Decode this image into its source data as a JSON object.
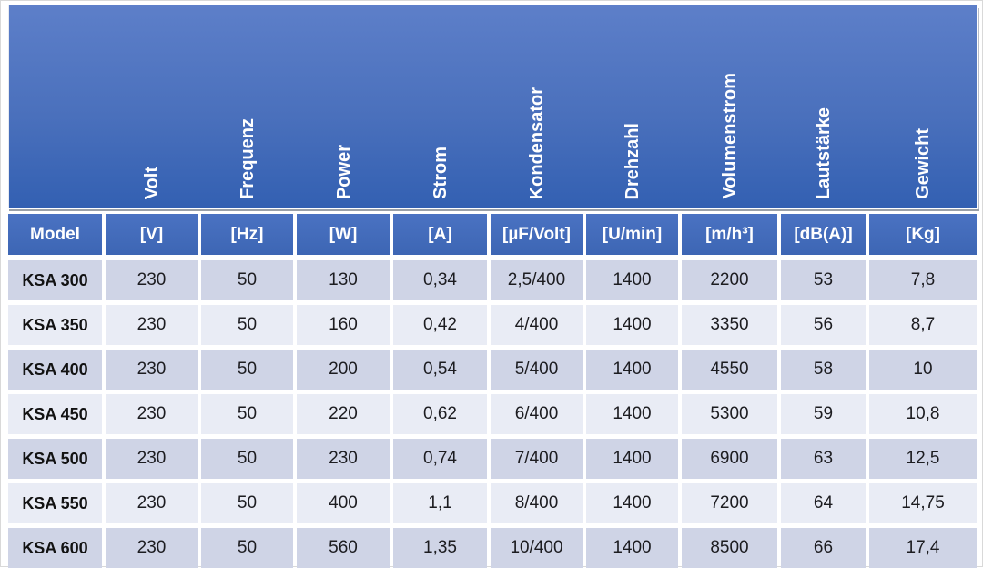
{
  "colors": {
    "banner_blue_top": "#5d7fc9",
    "banner_blue_bottom": "#3360b2",
    "unit_row_blue": "#3d66b4",
    "band_dark": "#cfd4e6",
    "band_light": "#e9ecf5",
    "header_text": "#ffffff",
    "data_text": "#1c1c20"
  },
  "chart_data": {
    "type": "table",
    "rotated_column_headers": [
      "Volt",
      "Frequenz",
      "Power",
      "Strom",
      "Kondensator",
      "Drehzahl",
      "Volumenstrom",
      "Lautstärke",
      "Gewicht"
    ],
    "unit_row": [
      "Model",
      "[V]",
      "[Hz]",
      "[W]",
      "[A]",
      "[µF/Volt]",
      "[U/min]",
      "[m/h³]",
      "[dB(A)]",
      "[Kg]"
    ],
    "rows": [
      {
        "model": "KSA 300",
        "values": [
          "230",
          "50",
          "130",
          "0,34",
          "2,5/400",
          "1400",
          "2200",
          "53",
          "7,8"
        ]
      },
      {
        "model": "KSA 350",
        "values": [
          "230",
          "50",
          "160",
          "0,42",
          "4/400",
          "1400",
          "3350",
          "56",
          "8,7"
        ]
      },
      {
        "model": "KSA 400",
        "values": [
          "230",
          "50",
          "200",
          "0,54",
          "5/400",
          "1400",
          "4550",
          "58",
          "10"
        ]
      },
      {
        "model": "KSA 450",
        "values": [
          "230",
          "50",
          "220",
          "0,62",
          "6/400",
          "1400",
          "5300",
          "59",
          "10,8"
        ]
      },
      {
        "model": "KSA 500",
        "values": [
          "230",
          "50",
          "230",
          "0,74",
          "7/400",
          "1400",
          "6900",
          "63",
          "12,5"
        ]
      },
      {
        "model": "KSA 550",
        "values": [
          "230",
          "50",
          "400",
          "1,1",
          "8/400",
          "1400",
          "7200",
          "64",
          "14,75"
        ]
      },
      {
        "model": "KSA 600",
        "values": [
          "230",
          "50",
          "560",
          "1,35",
          "10/400",
          "1400",
          "8500",
          "66",
          "17,4"
        ]
      }
    ]
  }
}
